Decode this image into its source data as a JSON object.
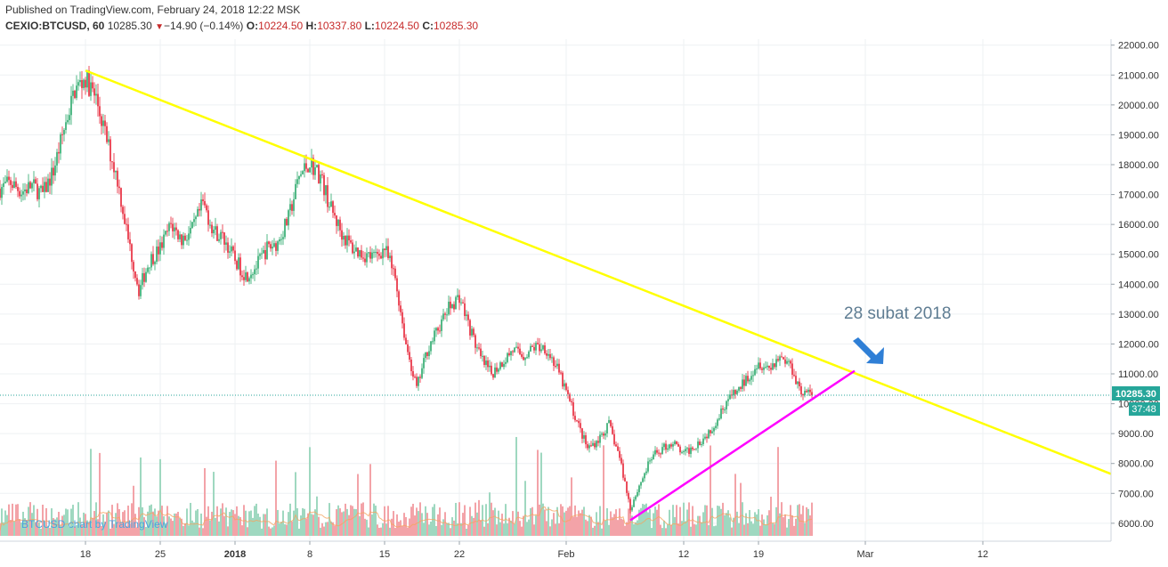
{
  "header": {
    "published": "Published on TradingView.com, February 24, 2018 12:22 MSK",
    "symbol": "CEXIO:BTCUSD, 60",
    "last": "10285.30",
    "change": "−14.90 (−0.14%)",
    "o_label": "O:",
    "o_value": "10224.50",
    "h_label": "H:",
    "h_value": "10337.80",
    "l_label": "L:",
    "l_value": "10224.50",
    "c_label": "C:",
    "c_value": "10285.30",
    "down_icon": "triangle-down-icon"
  },
  "watermark": "BTCUSD chart by TradingView",
  "annotation": "28 subat 2018",
  "price_badge": "10285.30",
  "countdown_badge": "37:48",
  "colors": {
    "up": "#53b987",
    "down": "#eb4d5c",
    "trendline_down": "#ffff00",
    "trendline_up": "#ff00ff",
    "arrow": "#2f7fd6",
    "price_line": "#26a69a",
    "volume_up": "#9fd8c0",
    "volume_down": "#f3a3a8",
    "volume_ma": "#f4a460"
  },
  "chart_data": {
    "type": "candlestick",
    "y_ticks": [
      6000,
      7000,
      8000,
      9000,
      10000,
      11000,
      12000,
      13000,
      14000,
      15000,
      16000,
      17000,
      18000,
      19000,
      20000,
      21000,
      22000
    ],
    "y_tick_labels": [
      "6000.00",
      "7000.00",
      "8000.00",
      "9000.00",
      "10000.00",
      "11000.00",
      "12000.00",
      "13000.00",
      "14000.00",
      "15000.00",
      "16000.00",
      "17000.00",
      "18000.00",
      "19000.00",
      "20000.00",
      "21000.00",
      "22000.00"
    ],
    "x_ticks": [
      {
        "label": "18",
        "date": "2017-12-18",
        "bold": false
      },
      {
        "label": "25",
        "date": "2017-12-25",
        "bold": false
      },
      {
        "label": "2018",
        "date": "2018-01-01",
        "bold": true
      },
      {
        "label": "8",
        "date": "2018-01-08",
        "bold": false
      },
      {
        "label": "15",
        "date": "2018-01-15",
        "bold": false
      },
      {
        "label": "22",
        "date": "2018-01-22",
        "bold": false
      },
      {
        "label": "Feb",
        "date": "2018-02-01",
        "bold": false
      },
      {
        "label": "12",
        "date": "2018-02-12",
        "bold": false
      },
      {
        "label": "19",
        "date": "2018-02-19",
        "bold": false
      },
      {
        "label": "Mar",
        "date": "2018-03-01",
        "bold": false
      },
      {
        "label": "12",
        "date": "2018-03-12",
        "bold": false
      }
    ],
    "x_range": [
      "2017-12-10",
      "2018-03-24"
    ],
    "y_range": [
      5400,
      22200
    ],
    "price_path": [
      [
        "2017-12-10",
        17200
      ],
      [
        "2017-12-11",
        17400
      ],
      [
        "2017-12-12",
        17100
      ],
      [
        "2017-12-13",
        17300
      ],
      [
        "2017-12-14",
        17000
      ],
      [
        "2017-12-15",
        17800
      ],
      [
        "2017-12-16",
        19200
      ],
      [
        "2017-12-17",
        20500
      ],
      [
        "2017-12-18",
        20900
      ],
      [
        "2017-12-19",
        20200
      ],
      [
        "2017-12-20",
        18800
      ],
      [
        "2017-12-21",
        17500
      ],
      [
        "2017-12-22",
        15500
      ],
      [
        "2017-12-23",
        13800
      ],
      [
        "2017-12-24",
        14800
      ],
      [
        "2017-12-25",
        15200
      ],
      [
        "2017-12-26",
        16000
      ],
      [
        "2017-12-27",
        15500
      ],
      [
        "2017-12-28",
        15800
      ],
      [
        "2017-12-29",
        16700
      ],
      [
        "2017-12-30",
        15800
      ],
      [
        "2017-12-31",
        15500
      ],
      [
        "2018-01-01",
        14800
      ],
      [
        "2018-01-02",
        14300
      ],
      [
        "2018-01-03",
        14600
      ],
      [
        "2018-01-04",
        15200
      ],
      [
        "2018-01-05",
        15400
      ],
      [
        "2018-01-06",
        16200
      ],
      [
        "2018-01-07",
        17600
      ],
      [
        "2018-01-08",
        18100
      ],
      [
        "2018-01-09",
        17600
      ],
      [
        "2018-01-10",
        16500
      ],
      [
        "2018-01-11",
        15700
      ],
      [
        "2018-01-12",
        15200
      ],
      [
        "2018-01-13",
        15000
      ],
      [
        "2018-01-14",
        14900
      ],
      [
        "2018-01-15",
        15200
      ],
      [
        "2018-01-16",
        14200
      ],
      [
        "2018-01-17",
        12000
      ],
      [
        "2018-01-18",
        10500
      ],
      [
        "2018-01-19",
        11800
      ],
      [
        "2018-01-20",
        12500
      ],
      [
        "2018-01-21",
        13200
      ],
      [
        "2018-01-22",
        13600
      ],
      [
        "2018-01-23",
        12500
      ],
      [
        "2018-01-24",
        11500
      ],
      [
        "2018-01-25",
        11000
      ],
      [
        "2018-01-26",
        11400
      ],
      [
        "2018-01-27",
        11800
      ],
      [
        "2018-01-28",
        11600
      ],
      [
        "2018-01-29",
        11900
      ],
      [
        "2018-01-30",
        11900
      ],
      [
        "2018-01-31",
        11300
      ],
      [
        "2018-02-01",
        10400
      ],
      [
        "2018-02-02",
        9400
      ],
      [
        "2018-02-03",
        8500
      ],
      [
        "2018-02-04",
        8800
      ],
      [
        "2018-02-05",
        9300
      ],
      [
        "2018-02-06",
        8200
      ],
      [
        "2018-02-07",
        6500
      ],
      [
        "2018-02-08",
        7400
      ],
      [
        "2018-02-09",
        8200
      ],
      [
        "2018-02-10",
        8500
      ],
      [
        "2018-02-11",
        8700
      ],
      [
        "2018-02-12",
        8300
      ],
      [
        "2018-02-13",
        8600
      ],
      [
        "2018-02-14",
        8900
      ],
      [
        "2018-02-15",
        9400
      ],
      [
        "2018-02-16",
        10100
      ],
      [
        "2018-02-17",
        10400
      ],
      [
        "2018-02-18",
        10900
      ],
      [
        "2018-02-19",
        11400
      ],
      [
        "2018-02-20",
        11200
      ],
      [
        "2018-02-21",
        11600
      ],
      [
        "2018-02-22",
        11300
      ],
      [
        "2018-02-23",
        10400
      ],
      [
        "2018-02-24",
        10300
      ]
    ],
    "trendlines": [
      {
        "name": "resistance",
        "from": [
          "2017-12-18",
          21150
        ],
        "to": [
          "2018-03-24",
          7650
        ]
      },
      {
        "name": "support",
        "from": [
          "2018-02-07",
          6100
        ],
        "to": [
          "2018-02-28",
          11100
        ]
      }
    ]
  }
}
